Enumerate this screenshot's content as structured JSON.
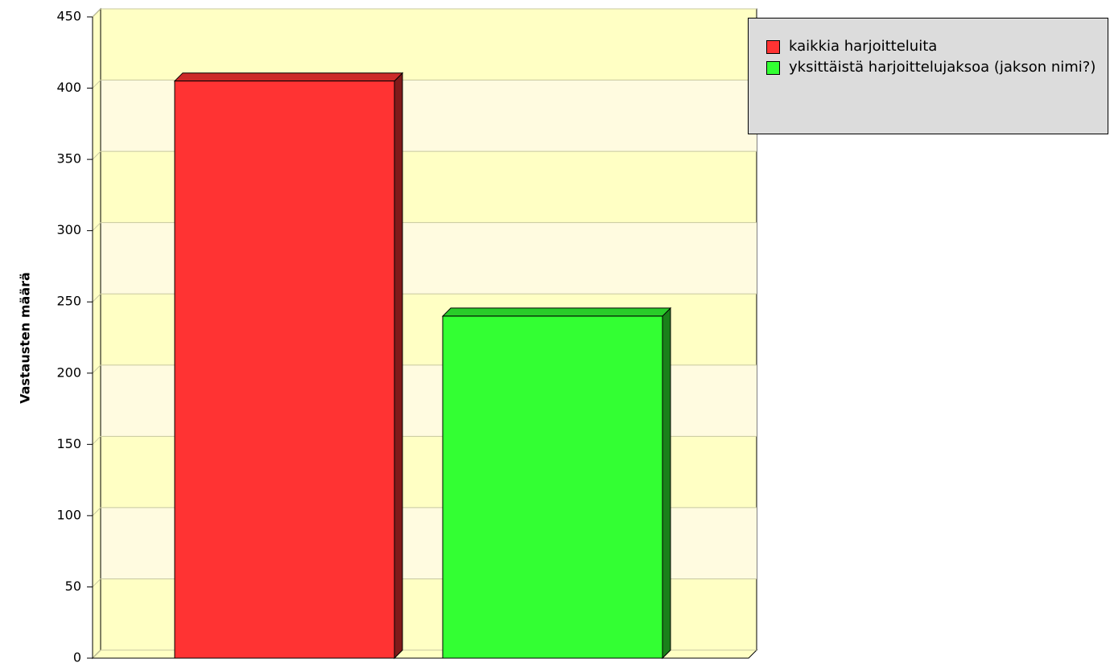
{
  "chart_data": {
    "type": "bar3d",
    "y_label": "Vastausten määrä",
    "series": [
      {
        "name": "kaikkia harjoitteluita",
        "color": "#ff3333",
        "values": [
          405
        ]
      },
      {
        "name": "yksittäistä harjoittelujaksoa (jakson nimi?)",
        "color": "#33ff33",
        "values": [
          240
        ]
      }
    ],
    "ylim": [
      0,
      450
    ],
    "yticks": [
      0,
      50,
      100,
      150,
      200,
      250,
      300,
      350,
      400,
      450
    ],
    "grid": true,
    "legend": "top-right"
  }
}
